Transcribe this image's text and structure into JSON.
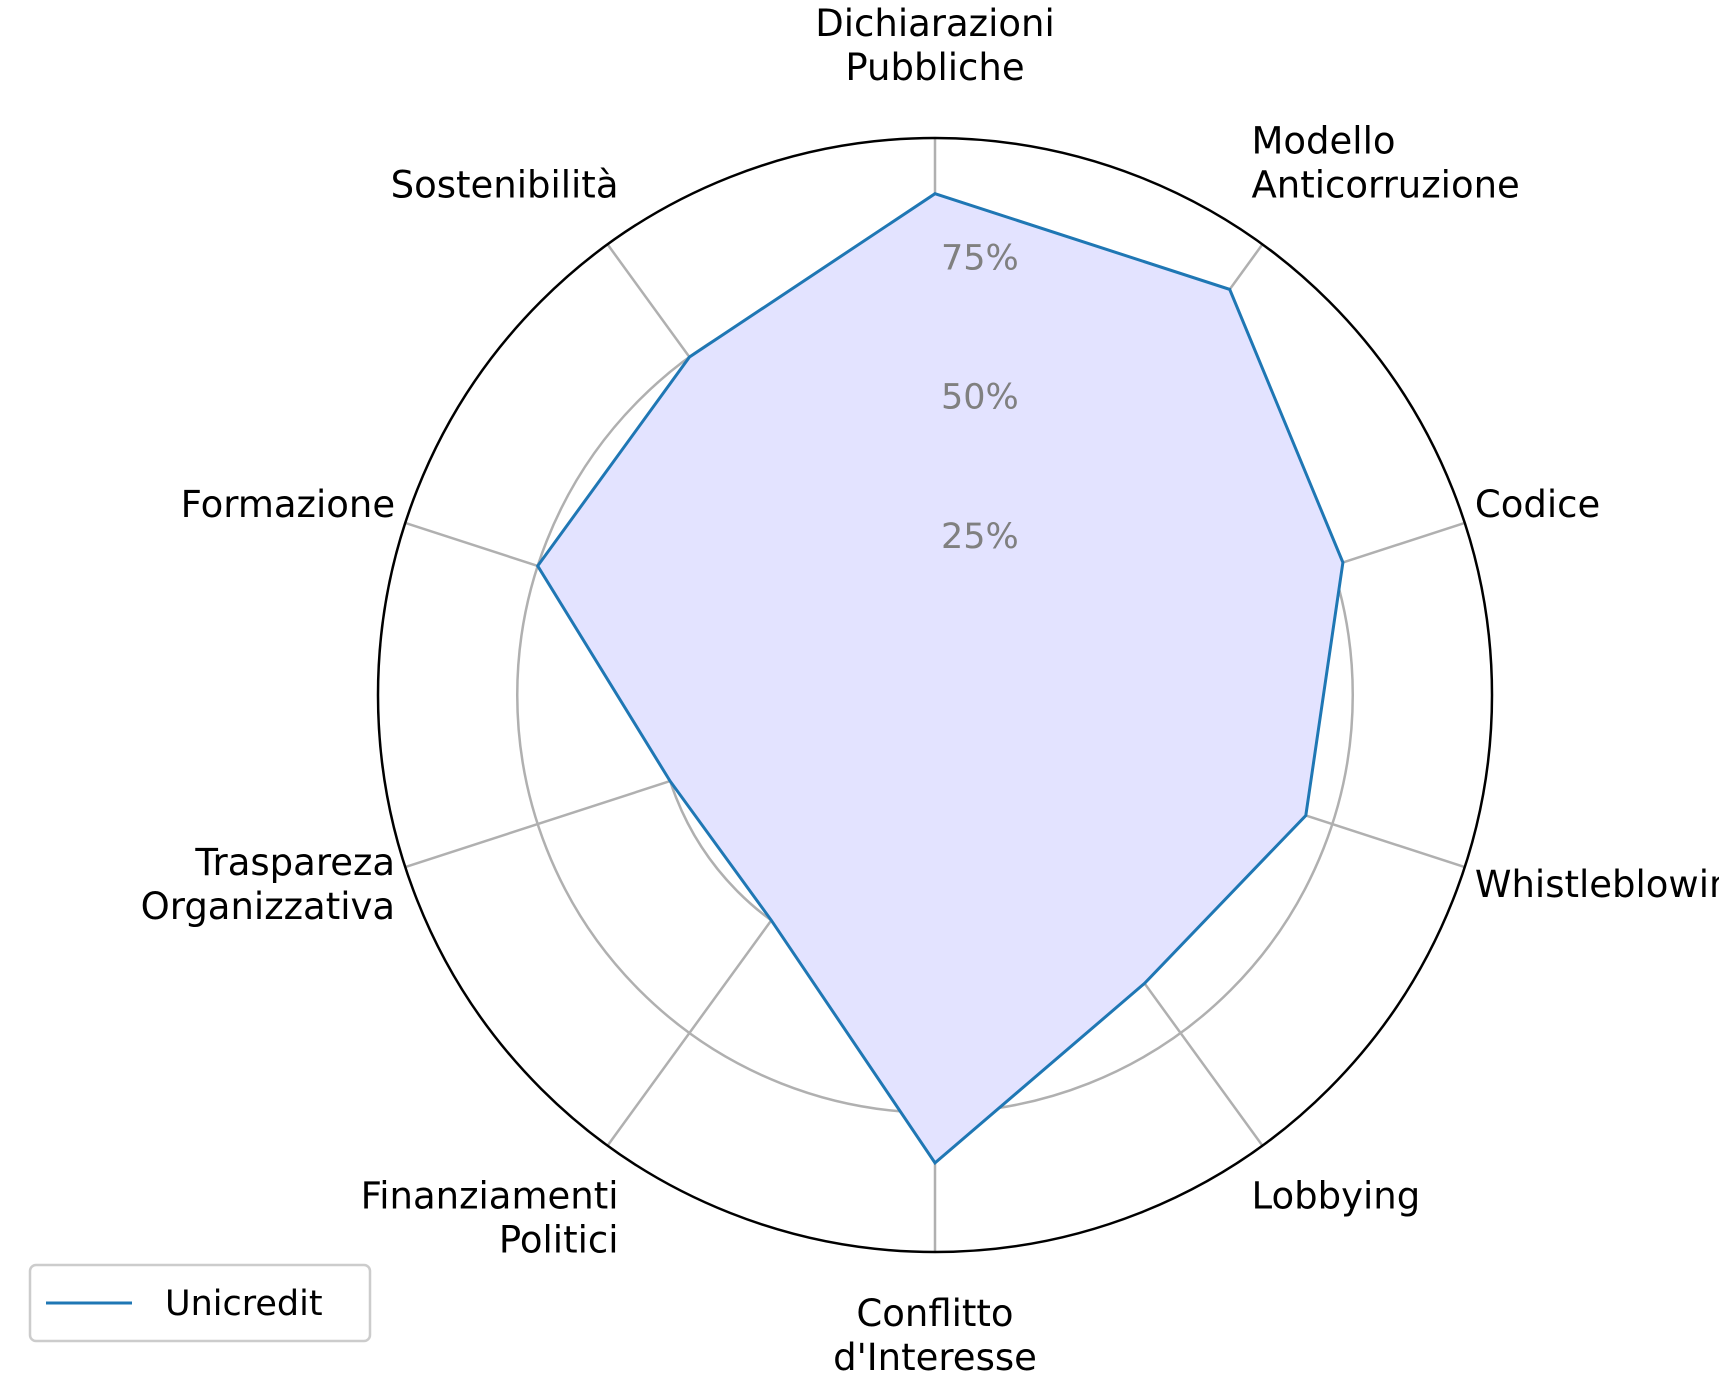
{
  "chart_data": {
    "type": "radar",
    "categories": [
      [
        "Dichiarazioni",
        "Pubbliche"
      ],
      [
        "Modello",
        "Anticorruzione"
      ],
      [
        "Codice"
      ],
      [
        "Whistleblowing"
      ],
      [
        "Lobbying"
      ],
      [
        "Conflitto",
        "d'Interesse"
      ],
      [
        "Finanziamenti",
        "Politici"
      ],
      [
        "Traspareza",
        "Organizzativa"
      ],
      [
        "Formazione"
      ],
      [
        "Sostenibilità"
      ]
    ],
    "series": [
      {
        "name": "Unicredit",
        "values": [
          90,
          90,
          77,
          70,
          64,
          84,
          50,
          50,
          75,
          75
        ]
      }
    ],
    "radial_ticks": [
      25,
      50,
      75
    ],
    "radial_tick_labels": [
      "25%",
      "50%",
      "75%"
    ],
    "rlim": [
      0,
      100
    ],
    "grid": true,
    "legend_position": "bottom-left",
    "colors": {
      "line": "#1f77b4",
      "fill": "#e3e3ff",
      "grid": "#b0b0b0",
      "outer": "#000000",
      "tick_label": "#808080"
    }
  }
}
